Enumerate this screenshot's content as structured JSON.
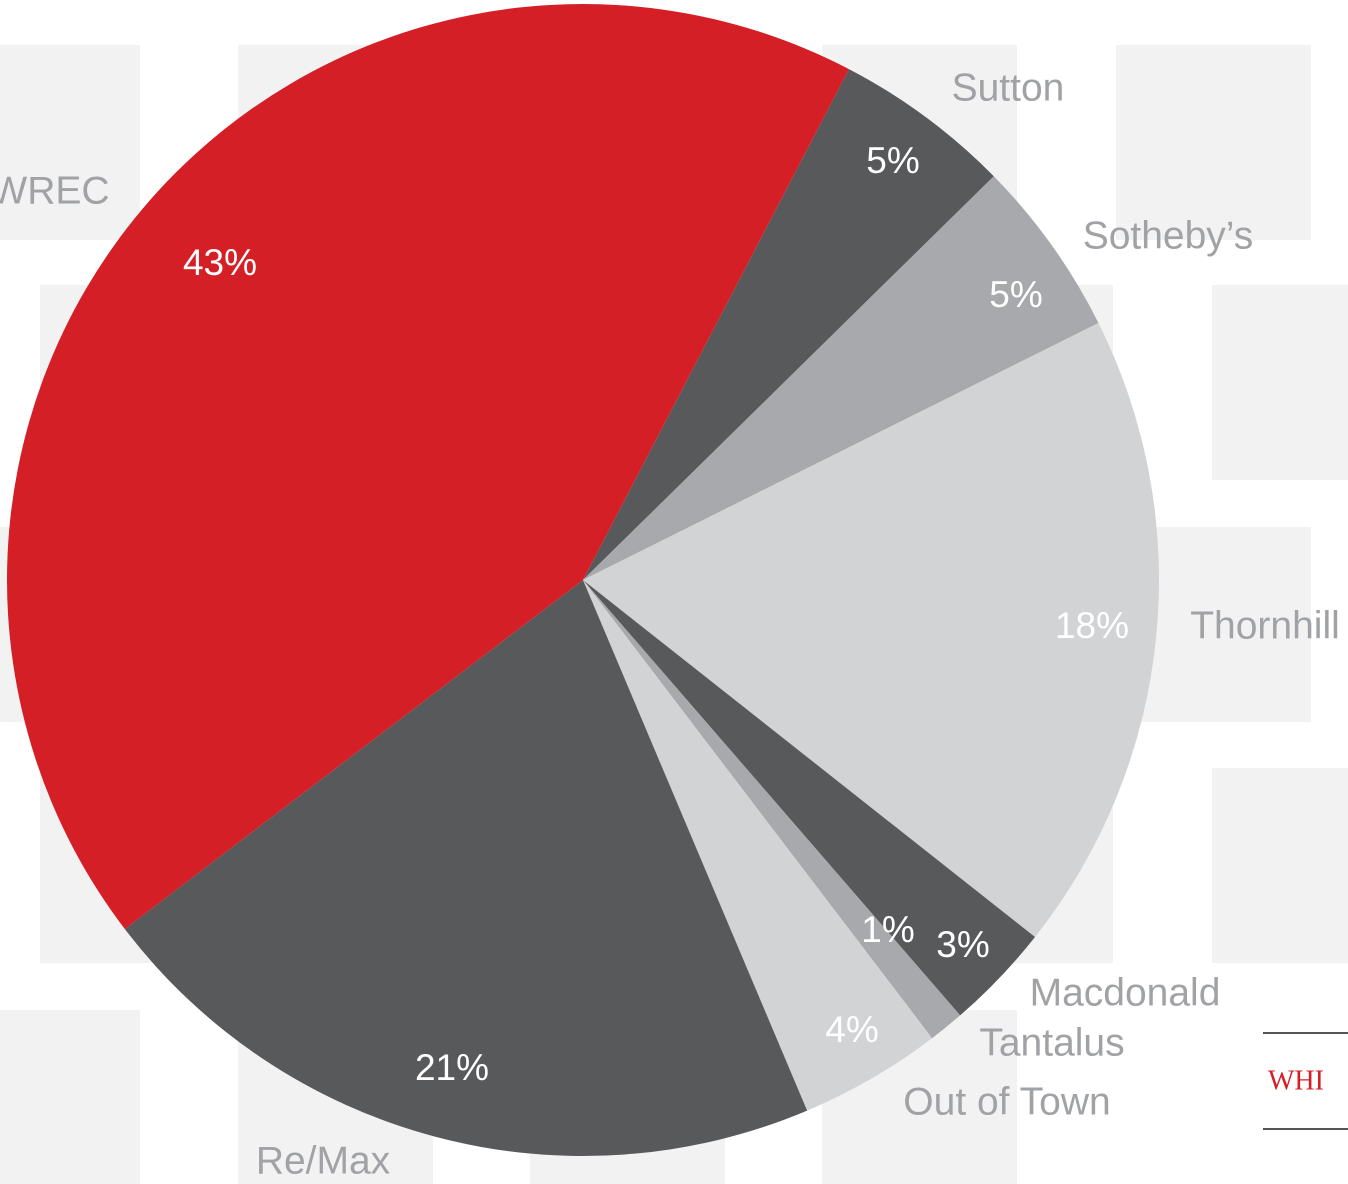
{
  "chart_data": {
    "type": "pie",
    "categories": [
      "Sutton",
      "Sotheby’s",
      "Thornhill",
      "Macdonald",
      "Tantalus",
      "Out of Town",
      "Re/Max",
      "WREC"
    ],
    "values": [
      5,
      5,
      18,
      3,
      1,
      4,
      21,
      43
    ],
    "value_labels": [
      "5%",
      "5%",
      "18%",
      "3%",
      "1%",
      "4%",
      "21%",
      "43%"
    ],
    "colors": [
      "#58595b",
      "#a7a9ac",
      "#d1d3d4",
      "#58595b",
      "#a7a9ac",
      "#d1d3d4",
      "#58595b",
      "#d41f26"
    ]
  },
  "side_text": "WHI"
}
